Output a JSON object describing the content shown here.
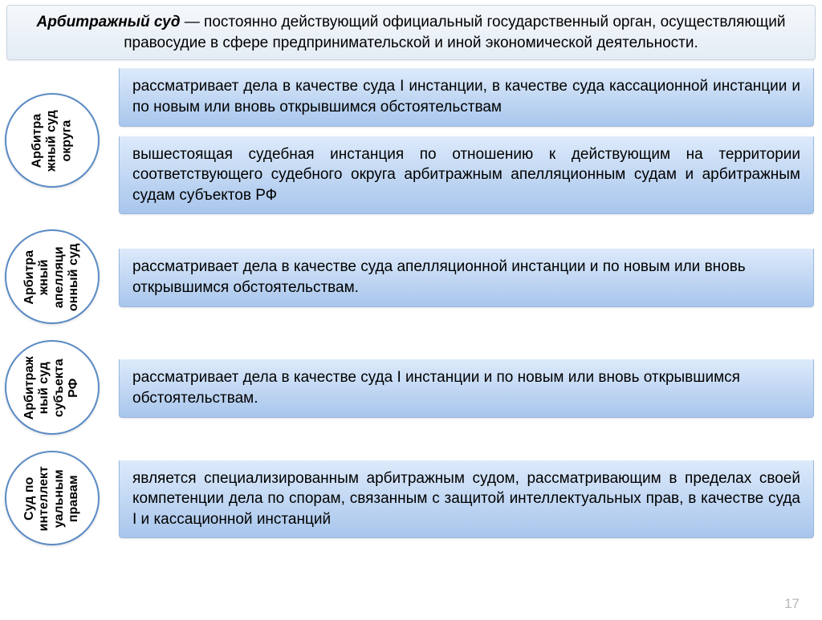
{
  "header": {
    "term": "Арбитражный суд",
    "definition": " — постоянно действующий официальный государственный орган, осуществляющий правосудие в сфере предпринимательской и иной экономической деятельности."
  },
  "rows": [
    {
      "label": "Арбитра\nжный суд\nокруга",
      "boxes": [
        {
          "text": "рассматривает дела в качестве суда I инстанции, в качестве суда кассационной инстанции и по новым или вновь открывшимся обстоятельствам",
          "justify": true
        },
        {
          "text": "вышестоящая судебная инстанция по отношению к действующим на территории соответствующего судебного округа арбитражным апелляционным судам и арбитражным судам субъектов РФ",
          "justify": true
        }
      ]
    },
    {
      "label": "Арбитра\nжный\nапелляци\nонный суд",
      "boxes": [
        {
          "text": "рассматривает дела в качестве суда апелляционной инстанции и по новым или вновь открывшимся обстоятельствам.",
          "justify": false
        }
      ]
    },
    {
      "label": "Арбитраж\nный суд\nсубъекта\nРФ",
      "boxes": [
        {
          "text": "рассматривает дела в качестве суда I инстанции и по новым или вновь открывшимся обстоятельствам.",
          "justify": false
        }
      ]
    },
    {
      "label": "Суд по\nинтеллект\nуальным\nправам",
      "boxes": [
        {
          "text": "является специализированным арбитражным судом, рассматривающим в пределах своей компетенции дела по спорам, связанным с защитой интеллектуальных прав, в качестве суда I и кассационной инстанций",
          "justify": true
        }
      ]
    }
  ],
  "pageNumber": "17",
  "colors": {
    "headerGradTop": "#f5f8fb",
    "headerGradBottom": "#e4ecf5",
    "boxGradTop": "#ddeafb",
    "boxGradBottom": "#a8c6ec",
    "circleBorder": "#5b8bc5",
    "pageNumColor": "#b8b8b8"
  },
  "typography": {
    "bodyFontSize": 19,
    "circleFontSize": 16,
    "fontFamily": "Arial"
  }
}
